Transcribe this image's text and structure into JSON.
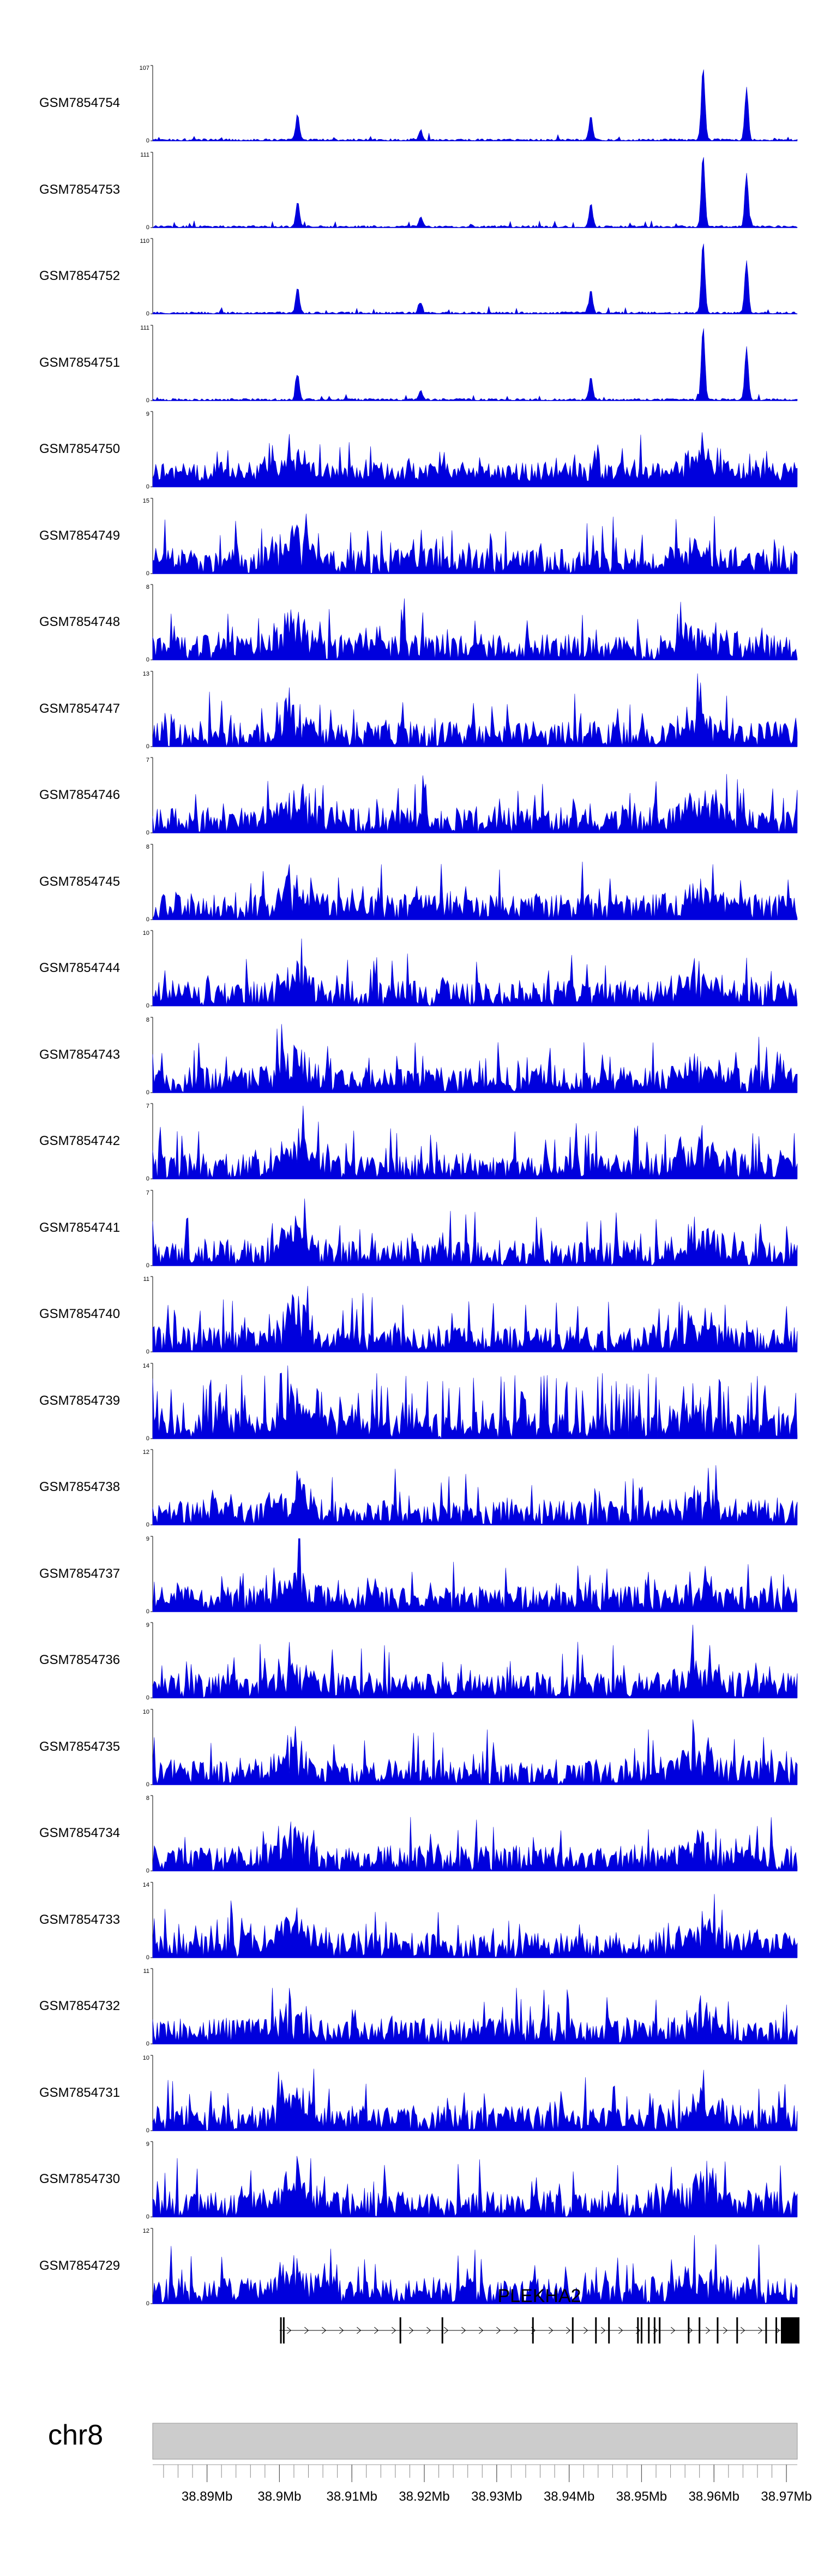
{
  "chart_data": {
    "type": "area",
    "genome": {
      "chromosome": "chr8",
      "xlim": [
        38.8825,
        38.9715
      ]
    },
    "tracks": [
      {
        "name": "GSM7854754",
        "ymax": 107,
        "profile": "sharp"
      },
      {
        "name": "GSM7854753",
        "ymax": 111,
        "profile": "sharp"
      },
      {
        "name": "GSM7854752",
        "ymax": 110,
        "profile": "sharp"
      },
      {
        "name": "GSM7854751",
        "ymax": 111,
        "profile": "sharp"
      },
      {
        "name": "GSM7854750",
        "ymax": 9,
        "profile": "broad"
      },
      {
        "name": "GSM7854749",
        "ymax": 15,
        "profile": "noisy"
      },
      {
        "name": "GSM7854748",
        "ymax": 8,
        "profile": "noisy"
      },
      {
        "name": "GSM7854747",
        "ymax": 13,
        "profile": "noisy"
      },
      {
        "name": "GSM7854746",
        "ymax": 7,
        "profile": "noisy"
      },
      {
        "name": "GSM7854745",
        "ymax": 8,
        "profile": "noisy"
      },
      {
        "name": "GSM7854744",
        "ymax": 10,
        "profile": "noisy"
      },
      {
        "name": "GSM7854743",
        "ymax": 8,
        "profile": "noisy"
      },
      {
        "name": "GSM7854742",
        "ymax": 7,
        "profile": "noisy"
      },
      {
        "name": "GSM7854741",
        "ymax": 7,
        "profile": "noisy"
      },
      {
        "name": "GSM7854740",
        "ymax": 11,
        "profile": "noisy"
      },
      {
        "name": "GSM7854739",
        "ymax": 14,
        "profile": "spiky"
      },
      {
        "name": "GSM7854738",
        "ymax": 12,
        "profile": "noisy"
      },
      {
        "name": "GSM7854737",
        "ymax": 9,
        "profile": "noisy"
      },
      {
        "name": "GSM7854736",
        "ymax": 9,
        "profile": "noisy"
      },
      {
        "name": "GSM7854735",
        "ymax": 10,
        "profile": "noisy"
      },
      {
        "name": "GSM7854734",
        "ymax": 8,
        "profile": "noisy"
      },
      {
        "name": "GSM7854733",
        "ymax": 14,
        "profile": "noisy"
      },
      {
        "name": "GSM7854732",
        "ymax": 11,
        "profile": "noisy"
      },
      {
        "name": "GSM7854731",
        "ymax": 10,
        "profile": "noisy"
      },
      {
        "name": "GSM7854730",
        "ymax": 9,
        "profile": "noisy"
      },
      {
        "name": "GSM7854729",
        "ymax": 12,
        "profile": "noisy"
      }
    ],
    "ymin_label": "0",
    "peaks_mb": [
      38.9025,
      38.9195,
      38.943,
      38.9585,
      38.9645
    ],
    "gene": {
      "name": "PLEKHA2",
      "strand": "+",
      "start_mb": 38.9,
      "end_mb": 38.9715,
      "exons_mb": [
        38.9002,
        38.9006,
        38.9167,
        38.9225,
        38.935,
        38.9405,
        38.9437,
        38.9455,
        38.9495,
        38.95,
        38.951,
        38.9518,
        38.9525,
        38.9565,
        38.958,
        38.9605,
        38.9632,
        38.9672,
        38.9686,
        38.9694
      ]
    },
    "axis": {
      "ticks": [
        38.89,
        38.9,
        38.91,
        38.92,
        38.93,
        38.94,
        38.95,
        38.96,
        38.97
      ],
      "tick_labels": [
        "38.89Mb",
        "38.9Mb",
        "38.91Mb",
        "38.92Mb",
        "38.93Mb",
        "38.94Mb",
        "38.95Mb",
        "38.96Mb",
        "38.97Mb"
      ],
      "minor_step": 0.002
    },
    "colors": {
      "signal": "#0000dd",
      "ideogram": "#cccccc",
      "ideogram_border": "#999999",
      "gene": "#000000"
    }
  }
}
